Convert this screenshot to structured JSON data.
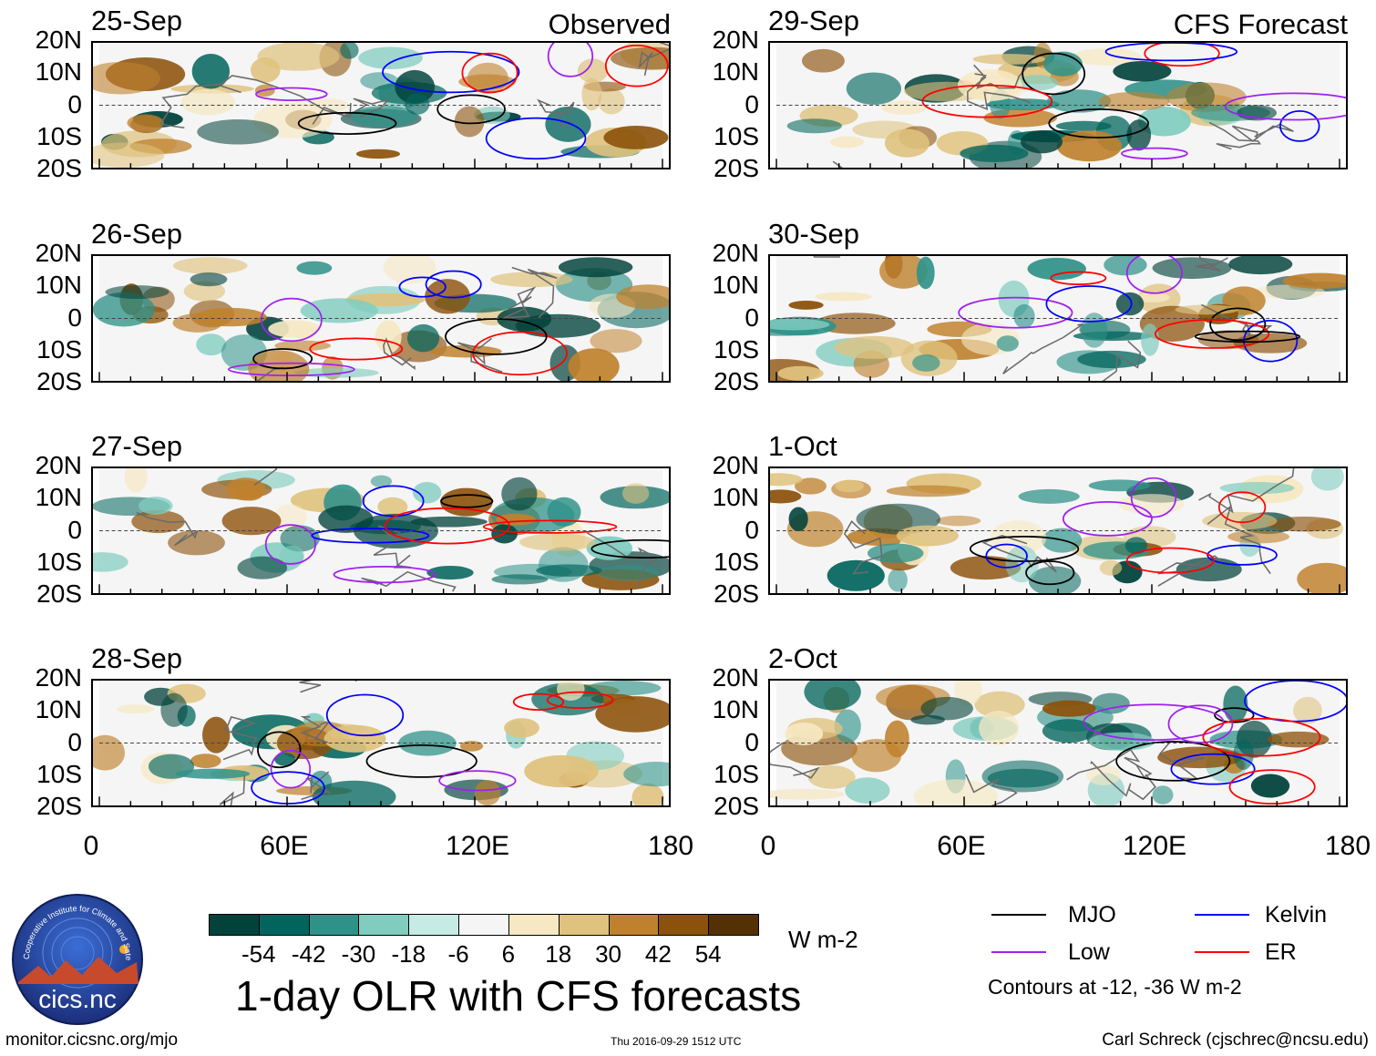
{
  "panels": [
    {
      "date": "25-Sep",
      "corner": "Observed"
    },
    {
      "date": "29-Sep",
      "corner": "CFS Forecast"
    },
    {
      "date": "26-Sep",
      "corner": ""
    },
    {
      "date": "30-Sep",
      "corner": ""
    },
    {
      "date": "27-Sep",
      "corner": ""
    },
    {
      "date": "1-Oct",
      "corner": ""
    },
    {
      "date": "28-Sep",
      "corner": ""
    },
    {
      "date": "2-Oct",
      "corner": ""
    }
  ],
  "lat_labels": [
    "20N",
    "10N",
    "0",
    "10S",
    "20S"
  ],
  "lon_labels": [
    "0",
    "60E",
    "120E",
    "180"
  ],
  "colorbar": {
    "labels": [
      "-54",
      "-42",
      "-30",
      "-18",
      "-6",
      "6",
      "18",
      "30",
      "42",
      "54"
    ],
    "colors": [
      "#01423b",
      "#02655d",
      "#2f9289",
      "#80ccbf",
      "#c5ebe4",
      "#f5f5f5",
      "#f6e8c3",
      "#dfc27d",
      "#bf812d",
      "#8c510a",
      "#543005"
    ],
    "units": "W m-2"
  },
  "title": "1-day OLR with CFS forecasts",
  "legend": {
    "items": [
      {
        "label": "MJO",
        "color": "#000000"
      },
      {
        "label": "Kelvin",
        "color": "#0000ff"
      },
      {
        "label": "Low",
        "color": "#a020f0"
      },
      {
        "label": "ER",
        "color": "#ff0000"
      }
    ],
    "note": "Contours at -12, -36 W m-2"
  },
  "logo_text": "cics.nc",
  "logo_ring_text": "Cooperative Institute for Climate and Satellites",
  "footer": {
    "left": "monitor.cicsnc.org/mjo",
    "center": "Thu 2016-09-29 1512 UTC",
    "right": "Carl Schreck (cjschrec@ncsu.edu)"
  }
}
